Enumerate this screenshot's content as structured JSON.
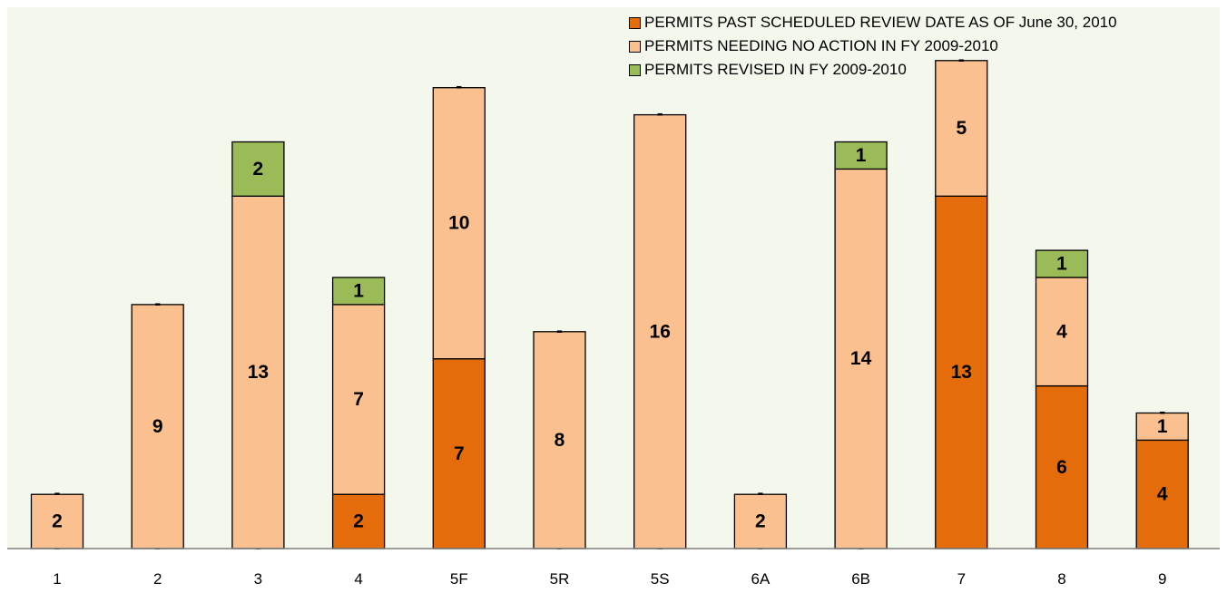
{
  "chart_data": {
    "type": "bar",
    "stacked": true,
    "categories": [
      "1",
      "2",
      "3",
      "4",
      "5F",
      "5R",
      "5S",
      "6A",
      "6B",
      "7",
      "8",
      "9"
    ],
    "series": [
      {
        "name": "PERMITS PAST SCHEDULED REVIEW DATE AS OF June 30, 2010",
        "color": "#E46C0A",
        "values": [
          0,
          0,
          0,
          2,
          7,
          0,
          0,
          0,
          0,
          13,
          6,
          4
        ],
        "labels": [
          "-",
          "-",
          "-",
          "2",
          "7",
          "-",
          "-",
          "-",
          "-",
          "13",
          "6",
          "4"
        ]
      },
      {
        "name": "PERMITS NEEDING NO ACTION IN FY 2009-2010",
        "color": "#FAC090",
        "values": [
          2,
          9,
          13,
          7,
          10,
          8,
          16,
          2,
          14,
          5,
          4,
          1
        ],
        "labels": [
          "2",
          "9",
          "13",
          "7",
          "10",
          "8",
          "16",
          "2",
          "14",
          "5",
          "4",
          "1"
        ]
      },
      {
        "name": "PERMITS REVISED IN FY 2009-2010",
        "color": "#9BBB59",
        "values": [
          0,
          0,
          2,
          1,
          0,
          0,
          0,
          0,
          1,
          0,
          1,
          0
        ],
        "labels": [
          "-",
          "-",
          "2",
          "1",
          "-",
          "-",
          "-",
          "-",
          "1",
          "-",
          "1",
          "-"
        ]
      }
    ],
    "title": "",
    "xlabel": "",
    "ylabel": "",
    "ylim": [
      0,
      20
    ],
    "grid": false,
    "legend_position": "top-right",
    "plot_background": "#F3F7EC"
  }
}
